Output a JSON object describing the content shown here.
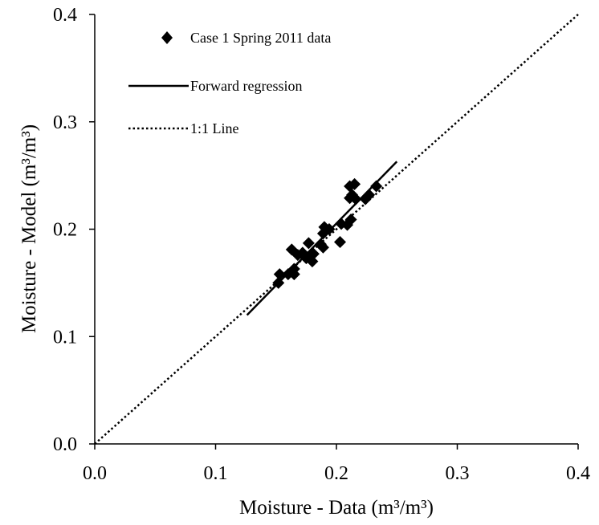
{
  "chart_data": {
    "type": "scatter",
    "title": "",
    "xlabel": "Moisture - Data (m³/m³)",
    "ylabel": "Moisture - Model (m³/m³)",
    "xlim": [
      0.0,
      0.4
    ],
    "ylim": [
      0.0,
      0.4
    ],
    "x_ticks": [
      "0.0",
      "0.1",
      "0.2",
      "0.3",
      "0.4"
    ],
    "y_ticks": [
      "0.0",
      "0.1",
      "0.2",
      "0.3",
      "0.4"
    ],
    "grid": false,
    "legend_position": "top-left",
    "series": [
      {
        "name": "Case 1 Spring 2011 data",
        "kind": "scatter",
        "marker": "diamond",
        "color": "#000000",
        "points": [
          {
            "x": 0.152,
            "y": 0.15
          },
          {
            "x": 0.153,
            "y": 0.158
          },
          {
            "x": 0.16,
            "y": 0.158
          },
          {
            "x": 0.163,
            "y": 0.181
          },
          {
            "x": 0.165,
            "y": 0.163
          },
          {
            "x": 0.165,
            "y": 0.158
          },
          {
            "x": 0.168,
            "y": 0.176
          },
          {
            "x": 0.172,
            "y": 0.178
          },
          {
            "x": 0.175,
            "y": 0.173
          },
          {
            "x": 0.177,
            "y": 0.187
          },
          {
            "x": 0.18,
            "y": 0.17
          },
          {
            "x": 0.181,
            "y": 0.177
          },
          {
            "x": 0.187,
            "y": 0.186
          },
          {
            "x": 0.189,
            "y": 0.183
          },
          {
            "x": 0.189,
            "y": 0.196
          },
          {
            "x": 0.19,
            "y": 0.202
          },
          {
            "x": 0.194,
            "y": 0.2
          },
          {
            "x": 0.203,
            "y": 0.188
          },
          {
            "x": 0.204,
            "y": 0.205
          },
          {
            "x": 0.209,
            "y": 0.204
          },
          {
            "x": 0.211,
            "y": 0.229
          },
          {
            "x": 0.211,
            "y": 0.24
          },
          {
            "x": 0.212,
            "y": 0.209
          },
          {
            "x": 0.213,
            "y": 0.232
          },
          {
            "x": 0.215,
            "y": 0.242
          },
          {
            "x": 0.216,
            "y": 0.228
          },
          {
            "x": 0.224,
            "y": 0.228
          },
          {
            "x": 0.227,
            "y": 0.232
          },
          {
            "x": 0.233,
            "y": 0.24
          }
        ]
      },
      {
        "name": "Forward regression",
        "kind": "line",
        "style": "solid",
        "color": "#000000",
        "points": [
          {
            "x": 0.126,
            "y": 0.12
          },
          {
            "x": 0.25,
            "y": 0.263
          }
        ]
      },
      {
        "name": "1:1 Line",
        "kind": "line",
        "style": "dotted",
        "color": "#000000",
        "points": [
          {
            "x": 0.0,
            "y": 0.0
          },
          {
            "x": 0.4,
            "y": 0.4
          }
        ]
      }
    ]
  }
}
